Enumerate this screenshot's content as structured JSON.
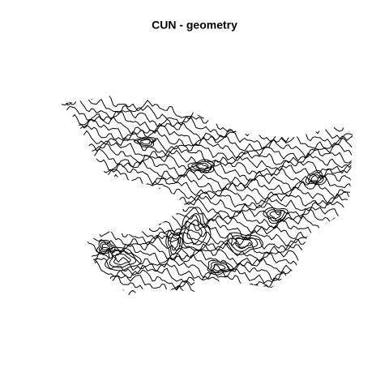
{
  "title": "CUN - geometry"
}
